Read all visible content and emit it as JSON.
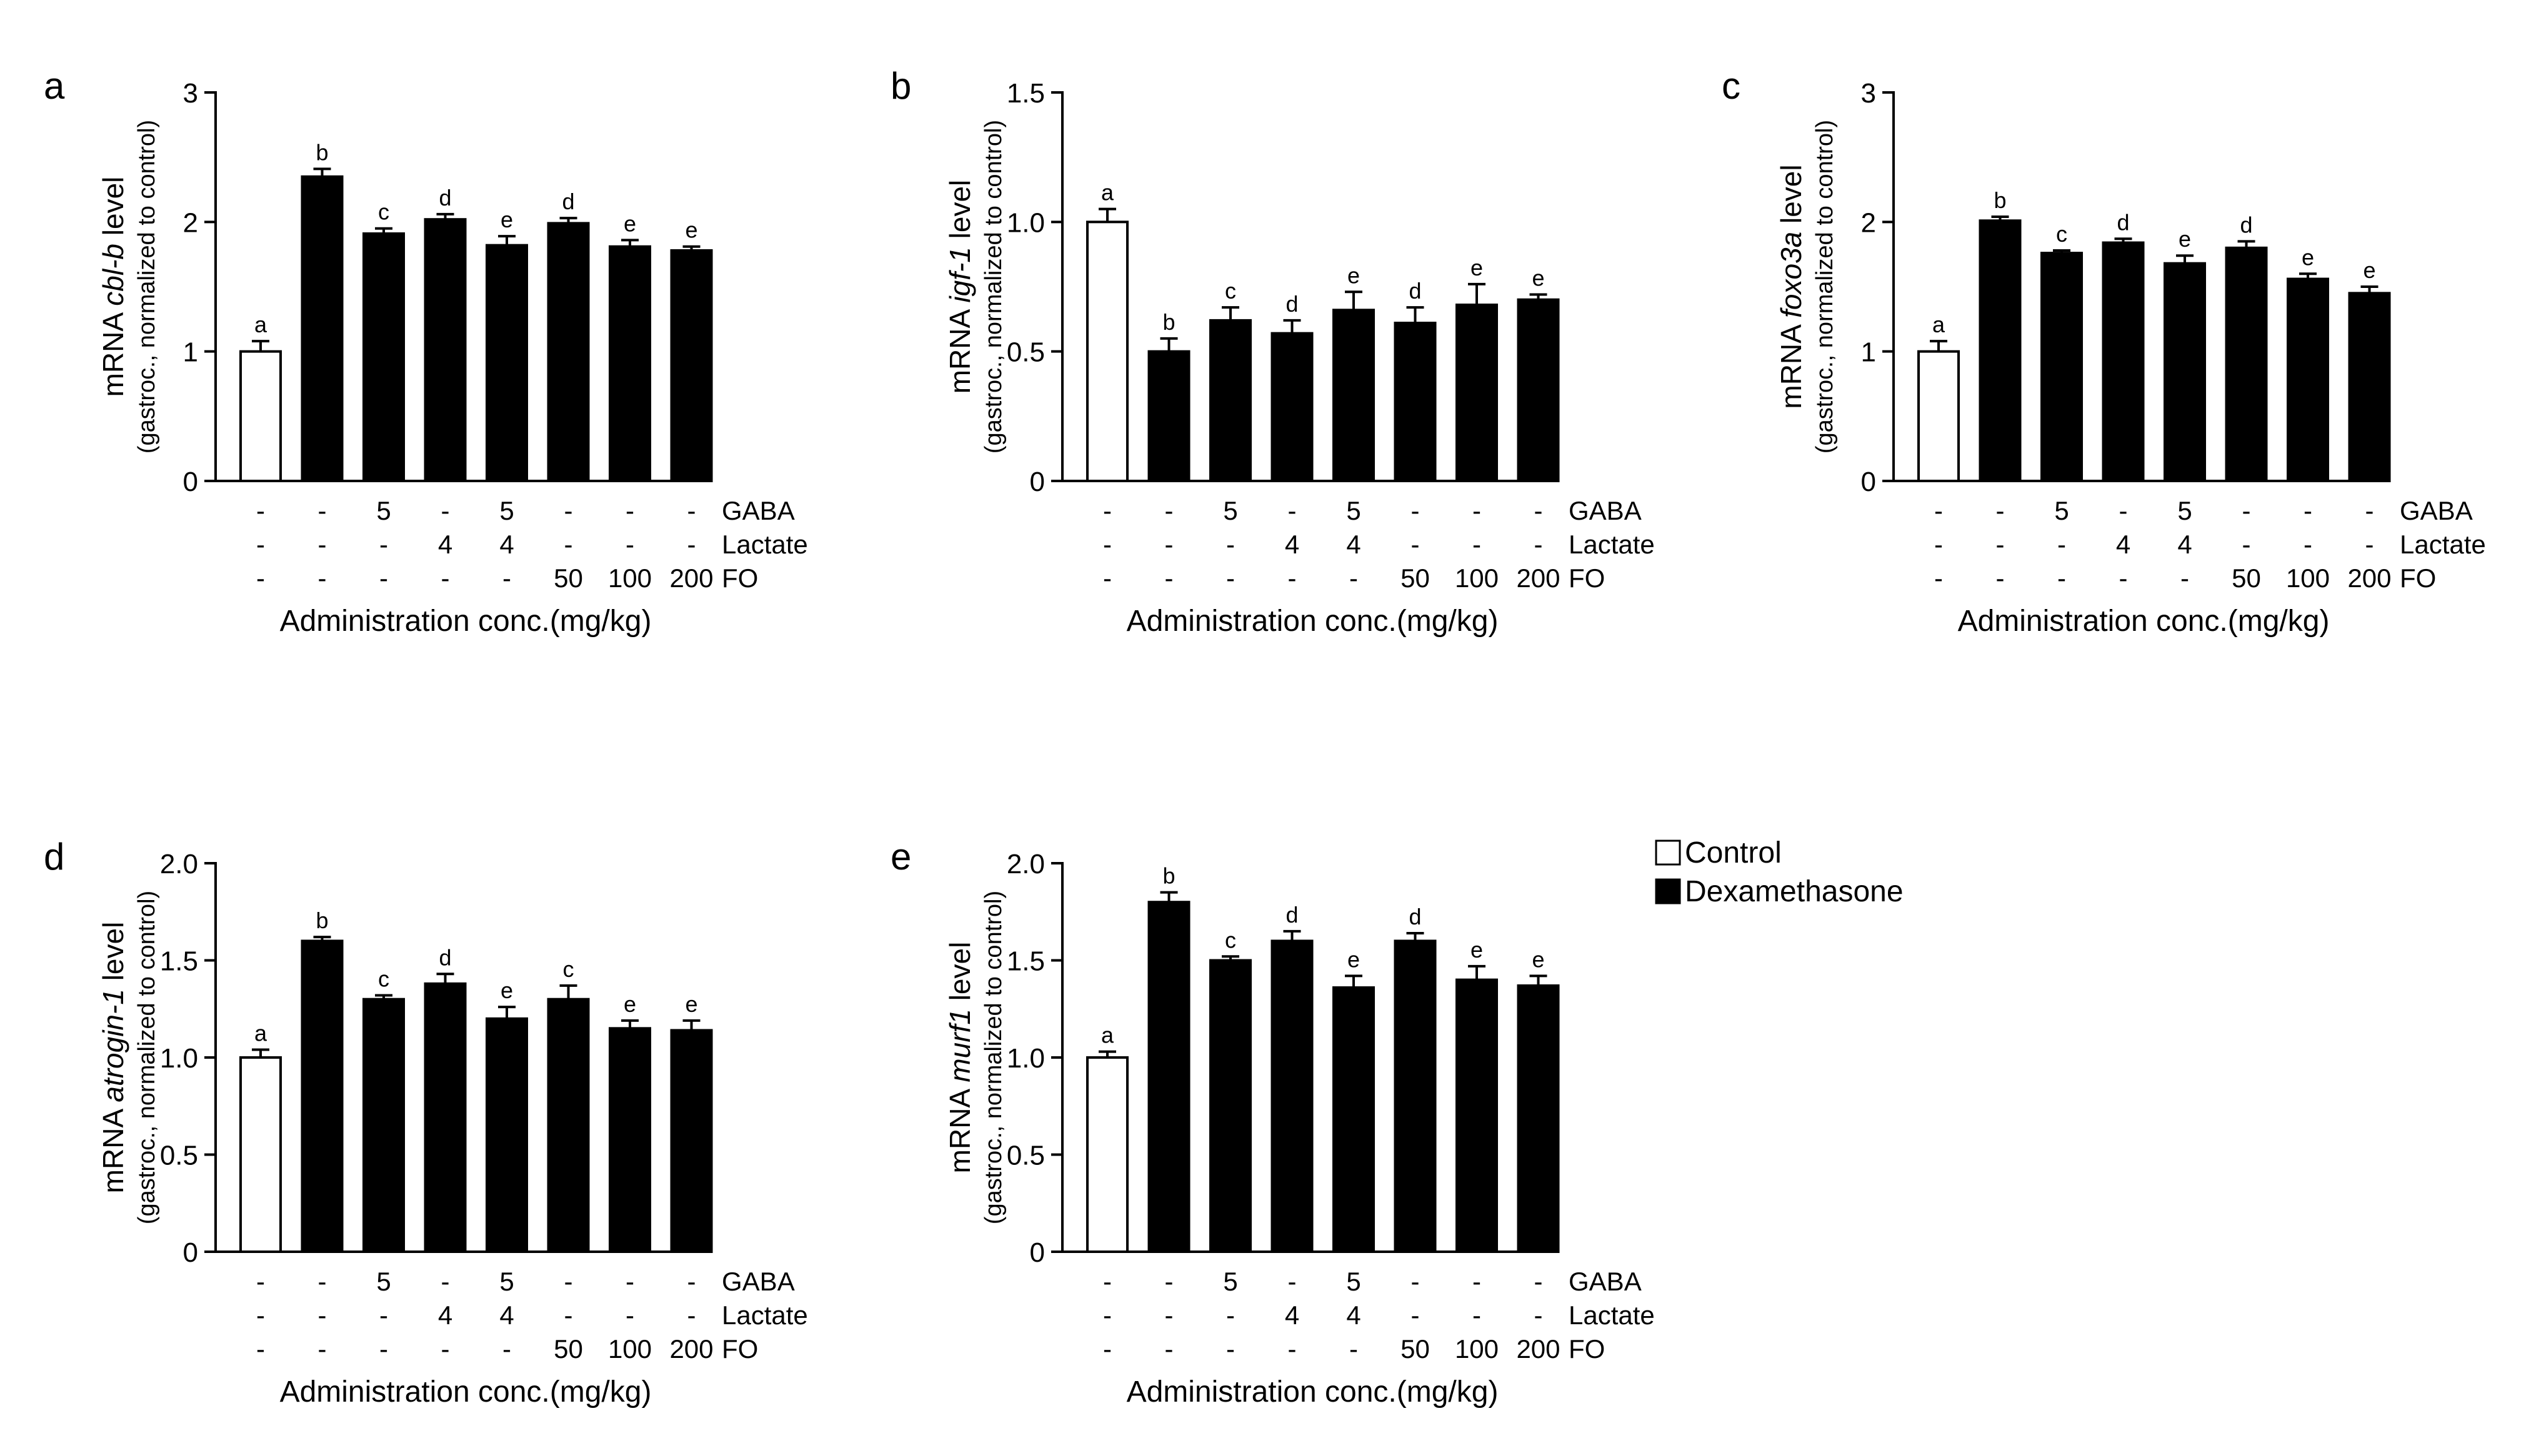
{
  "figure": {
    "legend": [
      {
        "label": "Control",
        "color": "#ffffff"
      },
      {
        "label": "Dexamethasone",
        "color": "#000000"
      }
    ]
  },
  "chart_data": [
    {
      "type": "bar",
      "panel": "a",
      "ylabel_prefix": "mRNA ",
      "ylabel_gene": "cbl-b",
      "ylabel_suffix": " level",
      "ylabel_line2": "(gastroc., normalized to control)",
      "ylim": [
        0,
        3
      ],
      "yticks": [
        "0",
        "1",
        "2",
        "3"
      ],
      "values": [
        1.0,
        2.35,
        1.91,
        2.02,
        1.82,
        1.99,
        1.81,
        1.78
      ],
      "errors": [
        0.08,
        0.06,
        0.04,
        0.04,
        0.07,
        0.04,
        0.05,
        0.03
      ],
      "sig": [
        "a",
        "b",
        "c",
        "d",
        "e",
        "d",
        "e",
        "e"
      ],
      "groups": [
        "Control",
        "Dexamethasone",
        "Dexamethasone",
        "Dexamethasone",
        "Dexamethasone",
        "Dexamethasone",
        "Dexamethasone",
        "Dexamethasone"
      ],
      "xlabel": "Administration conc.(mg/kg)",
      "treatments": [
        {
          "name": "GABA",
          "values": [
            "-",
            "-",
            "5",
            "-",
            "5",
            "-",
            "-",
            "-"
          ]
        },
        {
          "name": "Lactate",
          "values": [
            "-",
            "-",
            "-",
            "4",
            "4",
            "-",
            "-",
            "-"
          ]
        },
        {
          "name": "FO",
          "values": [
            "-",
            "-",
            "-",
            "-",
            "-",
            "50",
            "100",
            "200"
          ]
        }
      ]
    },
    {
      "type": "bar",
      "panel": "b",
      "ylabel_prefix": "mRNA ",
      "ylabel_gene": "igf-1",
      "ylabel_suffix": " level",
      "ylabel_line2": "(gastroc., normalized to control)",
      "ylim": [
        0,
        1.5
      ],
      "yticks": [
        "0",
        "0.5",
        "1.0",
        "1.5"
      ],
      "values": [
        1.0,
        0.5,
        0.62,
        0.57,
        0.66,
        0.61,
        0.68,
        0.7
      ],
      "errors": [
        0.05,
        0.05,
        0.05,
        0.05,
        0.07,
        0.06,
        0.08,
        0.02
      ],
      "sig": [
        "a",
        "b",
        "c",
        "d",
        "e",
        "d",
        "e",
        "e"
      ],
      "groups": [
        "Control",
        "Dexamethasone",
        "Dexamethasone",
        "Dexamethasone",
        "Dexamethasone",
        "Dexamethasone",
        "Dexamethasone",
        "Dexamethasone"
      ],
      "xlabel": "Administration conc.(mg/kg)",
      "treatments": [
        {
          "name": "GABA",
          "values": [
            "-",
            "-",
            "5",
            "-",
            "5",
            "-",
            "-",
            "-"
          ]
        },
        {
          "name": "Lactate",
          "values": [
            "-",
            "-",
            "-",
            "4",
            "4",
            "-",
            "-",
            "-"
          ]
        },
        {
          "name": "FO",
          "values": [
            "-",
            "-",
            "-",
            "-",
            "-",
            "50",
            "100",
            "200"
          ]
        }
      ]
    },
    {
      "type": "bar",
      "panel": "c",
      "ylabel_prefix": "mRNA ",
      "ylabel_gene": "foxo3a",
      "ylabel_suffix": " level",
      "ylabel_line2": "(gastroc., normalized to control)",
      "ylim": [
        0,
        3
      ],
      "yticks": [
        "0",
        "1",
        "2",
        "3"
      ],
      "values": [
        1.0,
        2.01,
        1.76,
        1.84,
        1.68,
        1.8,
        1.56,
        1.45
      ],
      "errors": [
        0.08,
        0.03,
        0.02,
        0.03,
        0.06,
        0.05,
        0.04,
        0.05
      ],
      "sig": [
        "a",
        "b",
        "c",
        "d",
        "e",
        "d",
        "e",
        "e"
      ],
      "groups": [
        "Control",
        "Dexamethasone",
        "Dexamethasone",
        "Dexamethasone",
        "Dexamethasone",
        "Dexamethasone",
        "Dexamethasone",
        "Dexamethasone"
      ],
      "xlabel": "Administration conc.(mg/kg)",
      "treatments": [
        {
          "name": "GABA",
          "values": [
            "-",
            "-",
            "5",
            "-",
            "5",
            "-",
            "-",
            "-"
          ]
        },
        {
          "name": "Lactate",
          "values": [
            "-",
            "-",
            "-",
            "4",
            "4",
            "-",
            "-",
            "-"
          ]
        },
        {
          "name": "FO",
          "values": [
            "-",
            "-",
            "-",
            "-",
            "-",
            "50",
            "100",
            "200"
          ]
        }
      ]
    },
    {
      "type": "bar",
      "panel": "d",
      "ylabel_prefix": "mRNA ",
      "ylabel_gene": "atrogin-1",
      "ylabel_suffix": " level",
      "ylabel_line2": "(gastroc., normalized to control)",
      "ylim": [
        0,
        2.0
      ],
      "yticks": [
        "0",
        "0.5",
        "1.0",
        "1.5",
        "2.0"
      ],
      "values": [
        1.0,
        1.6,
        1.3,
        1.38,
        1.2,
        1.3,
        1.15,
        1.14
      ],
      "errors": [
        0.04,
        0.02,
        0.02,
        0.05,
        0.06,
        0.07,
        0.04,
        0.05
      ],
      "sig": [
        "a",
        "b",
        "c",
        "d",
        "e",
        "c",
        "e",
        "e"
      ],
      "groups": [
        "Control",
        "Dexamethasone",
        "Dexamethasone",
        "Dexamethasone",
        "Dexamethasone",
        "Dexamethasone",
        "Dexamethasone",
        "Dexamethasone"
      ],
      "xlabel": "Administration conc.(mg/kg)",
      "treatments": [
        {
          "name": "GABA",
          "values": [
            "-",
            "-",
            "5",
            "-",
            "5",
            "-",
            "-",
            "-"
          ]
        },
        {
          "name": "Lactate",
          "values": [
            "-",
            "-",
            "-",
            "4",
            "4",
            "-",
            "-",
            "-"
          ]
        },
        {
          "name": "FO",
          "values": [
            "-",
            "-",
            "-",
            "-",
            "-",
            "50",
            "100",
            "200"
          ]
        }
      ]
    },
    {
      "type": "bar",
      "panel": "e",
      "ylabel_prefix": "mRNA ",
      "ylabel_gene": "murf1",
      "ylabel_suffix": " level",
      "ylabel_line2": "(gastroc., normalized to control)",
      "ylim": [
        0,
        2.0
      ],
      "yticks": [
        "0",
        "0.5",
        "1.0",
        "1.5",
        "2.0"
      ],
      "values": [
        1.0,
        1.8,
        1.5,
        1.6,
        1.36,
        1.6,
        1.4,
        1.37
      ],
      "errors": [
        0.03,
        0.05,
        0.02,
        0.05,
        0.06,
        0.04,
        0.07,
        0.05
      ],
      "sig": [
        "a",
        "b",
        "c",
        "d",
        "e",
        "d",
        "e",
        "e"
      ],
      "groups": [
        "Control",
        "Dexamethasone",
        "Dexamethasone",
        "Dexamethasone",
        "Dexamethasone",
        "Dexamethasone",
        "Dexamethasone",
        "Dexamethasone"
      ],
      "xlabel": "Administration conc.(mg/kg)",
      "treatments": [
        {
          "name": "GABA",
          "values": [
            "-",
            "-",
            "5",
            "-",
            "5",
            "-",
            "-",
            "-"
          ]
        },
        {
          "name": "Lactate",
          "values": [
            "-",
            "-",
            "-",
            "4",
            "4",
            "-",
            "-",
            "-"
          ]
        },
        {
          "name": "FO",
          "values": [
            "-",
            "-",
            "-",
            "-",
            "-",
            "50",
            "100",
            "200"
          ]
        }
      ]
    }
  ]
}
